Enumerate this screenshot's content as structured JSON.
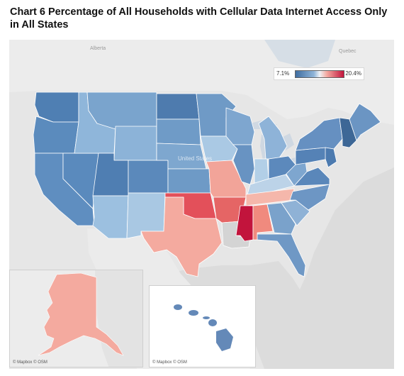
{
  "title": "Chart 6 Percentage of All Households with Cellular Data Internet Access Only in All States",
  "legend": {
    "min_label": "7.1%",
    "max_label": "20.4%",
    "color_low": "#3f6da0",
    "color_mid": "#eef2f6",
    "color_high": "#c2143c"
  },
  "basemap_labels": {
    "alberta": "Alberta",
    "quebec": "Quebec",
    "united_states": "United States"
  },
  "credits": {
    "alaska": "© Mapbox © OSM",
    "hawaii": "© Mapbox © OSM"
  },
  "colors": {
    "washington": "#4f7fb3",
    "oregon": "#5b8bbd",
    "california": "#5f8ec0",
    "nevada": "#5a8abd",
    "idaho": "#8fb6da",
    "montana": "#7aa4cd",
    "wyoming": "#8cb3d8",
    "utah": "#4f7eb2",
    "colorado": "#5b89bb",
    "arizona": "#9cc0e0",
    "new_mexico": "#a9c8e3",
    "north_dakota": "#4e7bae",
    "south_dakota": "#6f9bc7",
    "nebraska": "#7ea7cf",
    "kansas": "#6e9ac6",
    "oklahoma": "#e3505a",
    "texas": "#f4aa9f",
    "minnesota": "#6f9ac6",
    "iowa": "#aac9e4",
    "missouri": "#f2a499",
    "arkansas": "#e56565",
    "louisiana": "#d4d4d4",
    "wisconsin": "#7ea6cf",
    "illinois": "#6893c2",
    "michigan": "#8eb3d8",
    "indiana": "#b2cfe7",
    "kentucky": "#bcd3e8",
    "tennessee": "#f5b7ab",
    "mississippi": "#c2143c",
    "alabama": "#f08a7e",
    "georgia": "#7aa2cb",
    "florida": "#6f98c5",
    "south_carolina": "#8fb2d6",
    "north_carolina": "#6d96c4",
    "virginia": "#5a87ba",
    "west_virginia": "#7ea6cf",
    "ohio": "#5c89bc",
    "pennsylvania": "#5582b6",
    "new_york": "#6690c1",
    "maine": "#6b95c3",
    "new_england": "#3d6796",
    "new_jersey": "#4c7aaf",
    "alaska": "#f4aa9f",
    "hawaii": "#6489b8"
  }
}
